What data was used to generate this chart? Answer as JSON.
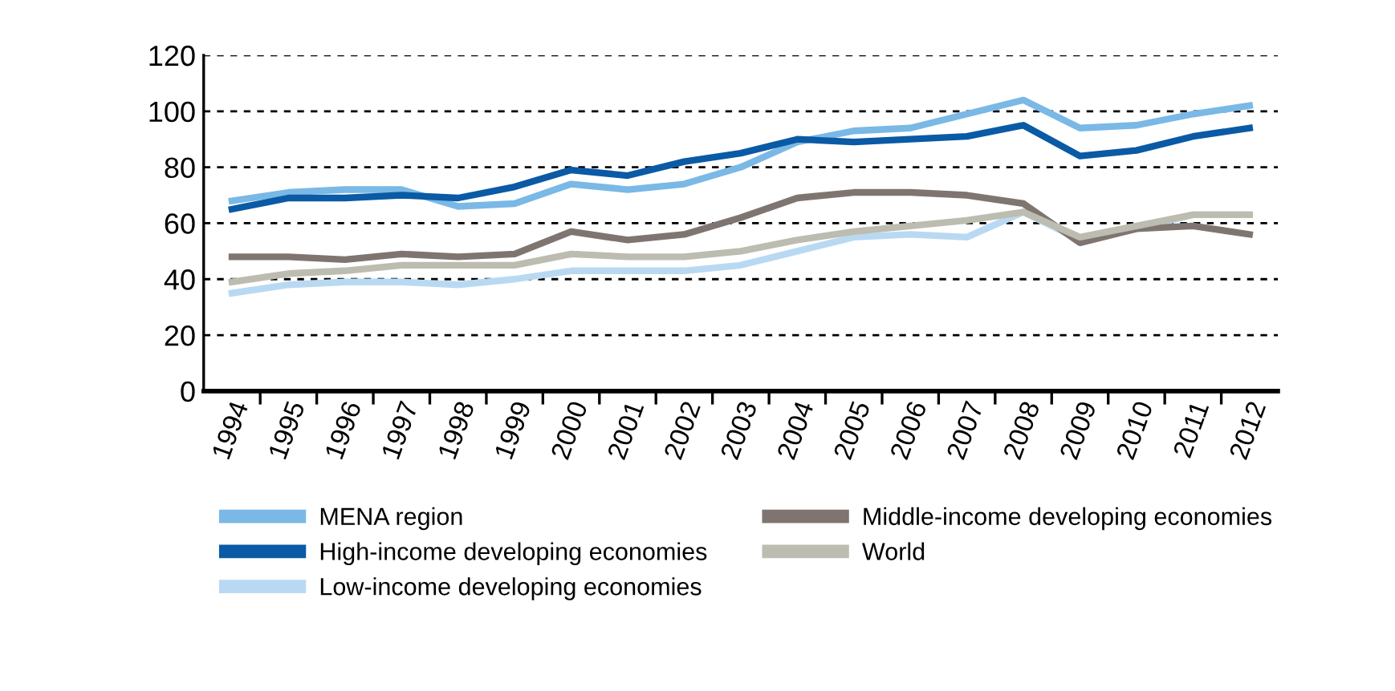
{
  "chart_data": {
    "type": "line",
    "categories": [
      "1994",
      "1995",
      "1996",
      "1997",
      "1998",
      "1999",
      "2000",
      "2001",
      "2002",
      "2003",
      "2004",
      "2005",
      "2006",
      "2007",
      "2008",
      "2009",
      "2010",
      "2011",
      "2012"
    ],
    "series": [
      {
        "name": "MENA region",
        "color": "#7ab8e6",
        "values": [
          68,
          71,
          72,
          72,
          66,
          67,
          74,
          72,
          74,
          80,
          89,
          93,
          94,
          99,
          104,
          94,
          95,
          99,
          102
        ]
      },
      {
        "name": "High-income developing economies",
        "color": "#0a5aa5",
        "values": [
          65,
          69,
          69,
          70,
          69,
          73,
          79,
          77,
          82,
          85,
          90,
          89,
          90,
          91,
          95,
          84,
          86,
          91,
          94
        ]
      },
      {
        "name": "Low-income developing economies",
        "color": "#b9d9f2",
        "values": [
          35,
          38,
          39,
          39,
          38,
          40,
          43,
          43,
          43,
          45,
          50,
          55,
          56,
          55,
          64,
          54,
          58,
          63,
          63
        ]
      },
      {
        "name": "Middle-income developing economies",
        "color": "#7f7570",
        "values": [
          48,
          48,
          47,
          49,
          48,
          49,
          57,
          54,
          56,
          62,
          69,
          71,
          71,
          70,
          67,
          53,
          58,
          59,
          56
        ]
      },
      {
        "name": "World",
        "color": "#bdbcb0",
        "values": [
          39,
          42,
          43,
          45,
          45,
          45,
          49,
          48,
          48,
          50,
          54,
          57,
          59,
          61,
          64,
          55,
          59,
          63,
          63
        ]
      }
    ],
    "ylim": [
      0,
      120
    ],
    "yticks": [
      0,
      20,
      40,
      60,
      80,
      100,
      120
    ],
    "grid": "y",
    "legend": "bottom",
    "marker": "none",
    "line_style": "solid"
  }
}
